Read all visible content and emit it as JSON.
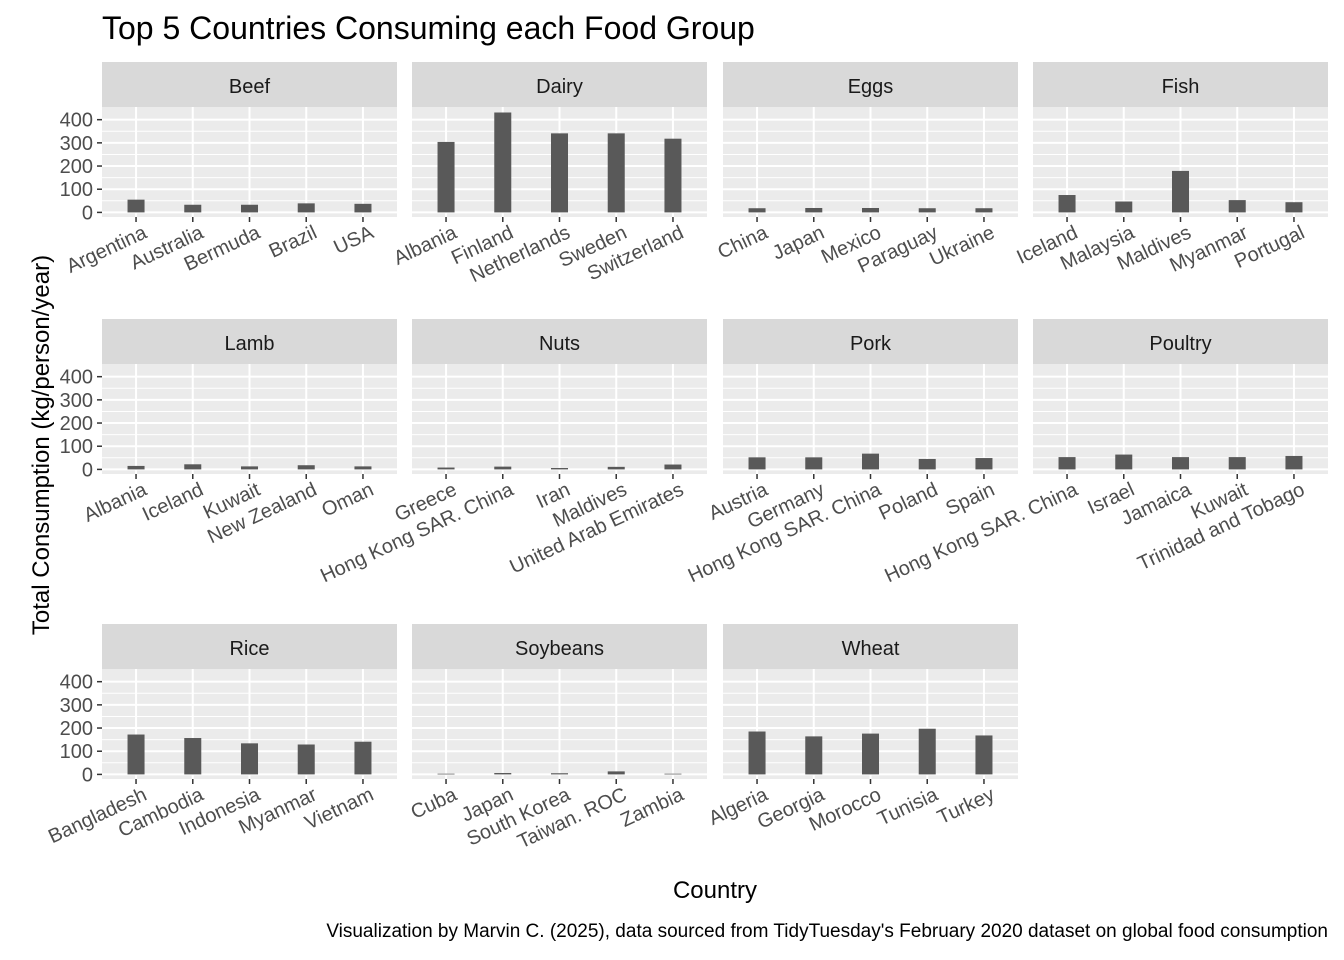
{
  "title": "Top 5 Countries Consuming each Food Group",
  "caption": "Visualization by Marvin C. (2025), data sourced from TidyTuesday's February 2020 dataset on global food consumption",
  "colors": {
    "bar": "#595959",
    "panel_bg": "#ebebeb",
    "strip_bg": "#d9d9d9",
    "grid": "#ffffff",
    "axis_text": "#4d4d4d"
  },
  "chart_data": {
    "type": "bar",
    "title": "Top 5 Countries Consuming each Food Group",
    "xlabel": "Country",
    "ylabel": "Total Consumption (kg/person/year)",
    "ylim": [
      0,
      420
    ],
    "yticks": [
      0,
      100,
      200,
      300,
      400
    ],
    "grid": true,
    "facets": [
      {
        "name": "Beef",
        "categories": [
          "Argentina",
          "Australia",
          "Bermuda",
          "Brazil",
          "USA"
        ],
        "values": [
          55,
          33,
          33,
          39,
          37
        ]
      },
      {
        "name": "Dairy",
        "categories": [
          "Albania",
          "Finland",
          "Netherlands",
          "Sweden",
          "Switzerland"
        ],
        "values": [
          304,
          431,
          341,
          341,
          318
        ]
      },
      {
        "name": "Eggs",
        "categories": [
          "China",
          "Japan",
          "Mexico",
          "Paraguay",
          "Ukraine"
        ],
        "values": [
          18,
          19,
          19,
          18,
          18
        ]
      },
      {
        "name": "Fish",
        "categories": [
          "Iceland",
          "Malaysia",
          "Maldives",
          "Myanmar",
          "Portugal"
        ],
        "values": [
          75,
          47,
          179,
          53,
          44
        ]
      },
      {
        "name": "Lamb",
        "categories": [
          "Albania",
          "Iceland",
          "Kuwait",
          "New Zealand",
          "Oman"
        ],
        "values": [
          15,
          22,
          13,
          18,
          13
        ]
      },
      {
        "name": "Nuts",
        "categories": [
          "Greece",
          "Hong Kong SAR. China",
          "Iran",
          "Maldives",
          "United Arab Emirates"
        ],
        "values": [
          8,
          12,
          6,
          11,
          21
        ]
      },
      {
        "name": "Pork",
        "categories": [
          "Austria",
          "Germany",
          "Hong Kong SAR. China",
          "Poland",
          "Spain"
        ],
        "values": [
          52,
          52,
          68,
          45,
          49
        ]
      },
      {
        "name": "Poultry",
        "categories": [
          "Hong Kong SAR. China",
          "Israel",
          "Jamaica",
          "Kuwait",
          "Trinidad and Tobago"
        ],
        "values": [
          53,
          64,
          53,
          53,
          58
        ]
      },
      {
        "name": "Rice",
        "categories": [
          "Bangladesh",
          "Cambodia",
          "Indonesia",
          "Myanmar",
          "Vietnam"
        ],
        "values": [
          172,
          157,
          134,
          129,
          141
        ]
      },
      {
        "name": "Soybeans",
        "categories": [
          "Cuba",
          "Japan",
          "South Korea",
          "Taiwan. ROC",
          "Zambia"
        ],
        "values": [
          3,
          6,
          5,
          13,
          3
        ]
      },
      {
        "name": "Wheat",
        "categories": [
          "Algeria",
          "Georgia",
          "Morocco",
          "Tunisia",
          "Turkey"
        ],
        "values": [
          185,
          164,
          176,
          197,
          168
        ]
      }
    ]
  }
}
